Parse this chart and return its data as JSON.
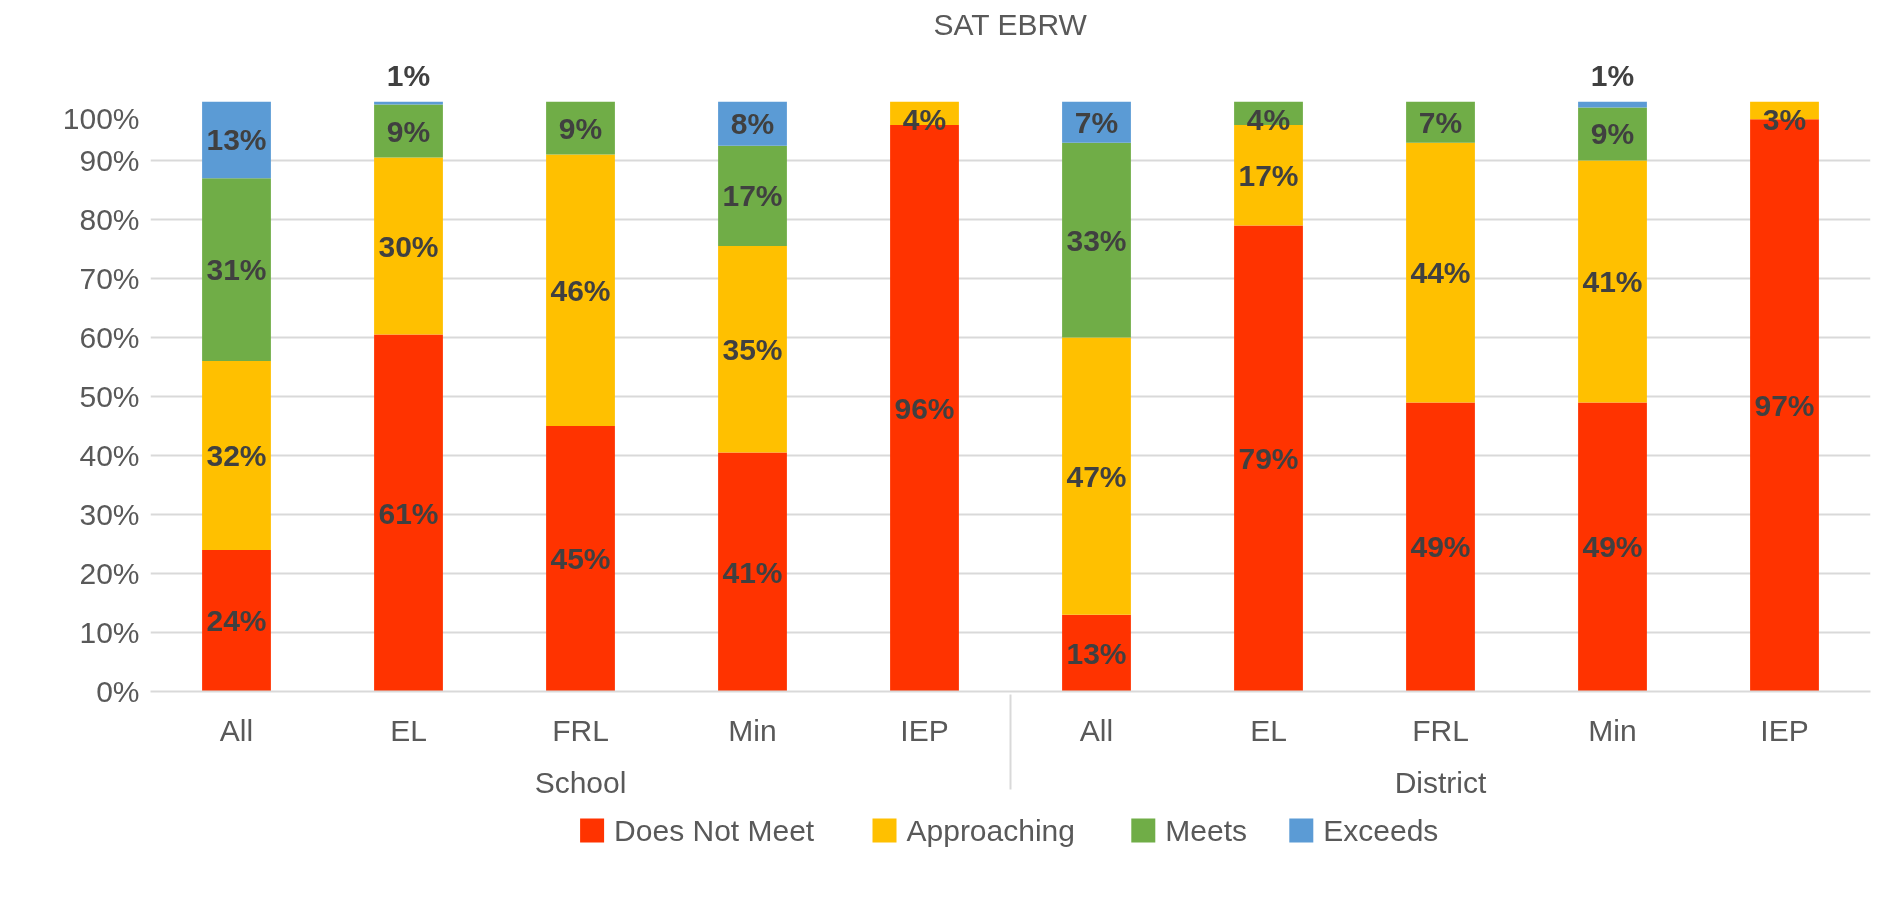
{
  "chart_data": {
    "type": "bar",
    "title": "SAT EBRW",
    "categories": [
      "All",
      "EL",
      "FRL",
      "Min",
      "IEP",
      "All",
      "EL",
      "FRL",
      "Min",
      "IEP"
    ],
    "annotations": [
      "School",
      "District"
    ],
    "stacked": true,
    "series": [
      {
        "name": "Does Not Meet",
        "color": "#ff3300",
        "values": [
          24,
          60.5,
          45,
          40.5,
          96,
          13,
          79,
          49,
          49,
          97
        ],
        "value_labels": [
          "24%",
          "61%",
          "45%",
          "41%",
          "96%",
          "13%",
          "79%",
          "49%",
          "49%",
          "97%"
        ]
      },
      {
        "name": "Approaching",
        "color": "#ffc000",
        "values": [
          32,
          30,
          46,
          35,
          4,
          47,
          17,
          44,
          41,
          3
        ],
        "value_labels": [
          "32%",
          "30%",
          "46%",
          "35%",
          "4%",
          "47%",
          "17%",
          "44%",
          "41%",
          "3%"
        ]
      },
      {
        "name": "Meets",
        "color": "#70ad47",
        "values": [
          31,
          9,
          9,
          17,
          null,
          33,
          4,
          7,
          9,
          null
        ],
        "value_labels": [
          "31%",
          "9%",
          "9%",
          "17%",
          null,
          "33%",
          "4%",
          "7%",
          "9%",
          null
        ]
      },
      {
        "name": "Exceeds",
        "color": "#5b9bd5",
        "values": [
          13,
          0.5,
          null,
          7.5,
          null,
          7,
          null,
          null,
          1,
          null
        ],
        "value_labels": [
          "13%",
          "1%",
          null,
          "8%",
          null,
          "7%",
          null,
          null,
          "1%",
          null
        ]
      }
    ],
    "ylim": [
      0,
      100
    ],
    "yticks": [
      {
        "value": 0,
        "label": "0%"
      },
      {
        "value": 10,
        "label": "10%"
      },
      {
        "value": 20,
        "label": "20%"
      },
      {
        "value": 30,
        "label": "30%"
      },
      {
        "value": 40,
        "label": "40%"
      },
      {
        "value": 50,
        "label": "50%"
      },
      {
        "value": 60,
        "label": "60%"
      },
      {
        "value": 70,
        "label": "70%"
      },
      {
        "value": 80,
        "label": "80%"
      },
      {
        "value": 90,
        "label": "90%"
      },
      {
        "value": 100,
        "label": "100%"
      }
    ],
    "grid": "y",
    "legend": "bottom"
  }
}
